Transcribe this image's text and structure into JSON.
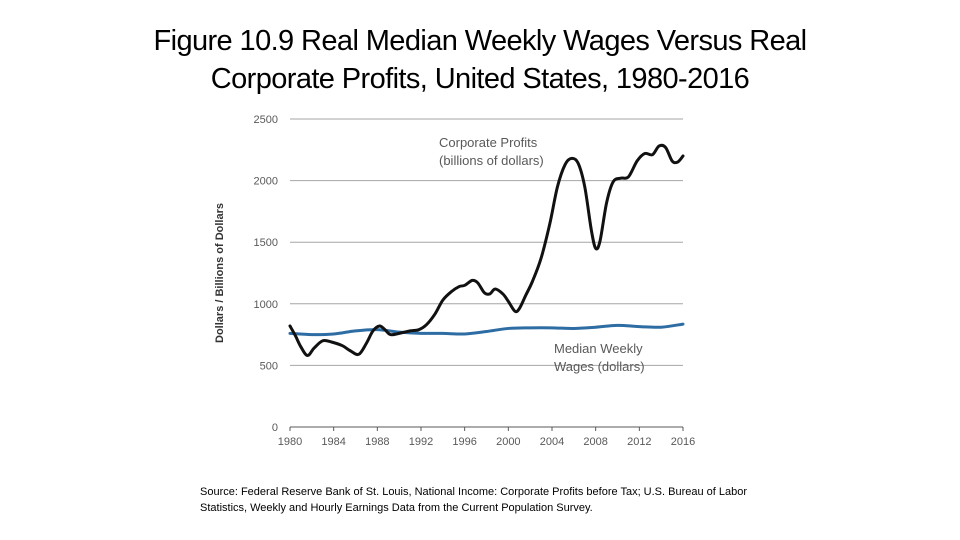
{
  "title_lines": [
    "Figure 10.9 Real Median Weekly Wages Versus Real",
    "Corporate Profits, United States, 1980-2016"
  ],
  "source_lines": [
    "Source: Federal Reserve Bank of St. Louis, National Income: Corporate Profits before Tax; U.S. Bureau of Labor",
    "Statistics, Weekly and Hourly Earnings Data from the Current Population Survey."
  ],
  "chart_data": {
    "type": "line",
    "ylabel": "Dollars / Billions of Dollars",
    "xlim": [
      1980,
      2016
    ],
    "ylim": [
      0,
      2500
    ],
    "x_ticks": [
      "1980",
      "1984",
      "1988",
      "1992",
      "1996",
      "2000",
      "2004",
      "2008",
      "2012",
      "2016"
    ],
    "y_ticks": [
      "0",
      "500",
      "1000",
      "1500",
      "2000",
      "2500"
    ],
    "grid": "horizontal",
    "legend": "none",
    "series": [
      {
        "color": "#111111",
        "points": [
          [
            1980,
            820
          ],
          [
            1980.5,
            740
          ],
          [
            1981,
            650
          ],
          [
            1981.6,
            580
          ],
          [
            1982.2,
            640
          ],
          [
            1983,
            700
          ],
          [
            1983.8,
            690
          ],
          [
            1984.8,
            660
          ],
          [
            1985.5,
            620
          ],
          [
            1986.3,
            590
          ],
          [
            1987,
            680
          ],
          [
            1987.6,
            780
          ],
          [
            1988.2,
            820
          ],
          [
            1988.7,
            790
          ],
          [
            1989.2,
            750
          ],
          [
            1990,
            760
          ],
          [
            1991,
            780
          ],
          [
            1991.8,
            790
          ],
          [
            1992.5,
            830
          ],
          [
            1993.3,
            920
          ],
          [
            1994,
            1030
          ],
          [
            1994.8,
            1100
          ],
          [
            1995.5,
            1140
          ],
          [
            1996,
            1150
          ],
          [
            1996.7,
            1190
          ],
          [
            1997.2,
            1170
          ],
          [
            1997.8,
            1090
          ],
          [
            1998.3,
            1080
          ],
          [
            1998.8,
            1120
          ],
          [
            1999.5,
            1080
          ],
          [
            2000,
            1020
          ],
          [
            2000.6,
            940
          ],
          [
            2001,
            960
          ],
          [
            2001.6,
            1070
          ],
          [
            2002.2,
            1180
          ],
          [
            2003,
            1370
          ],
          [
            2003.8,
            1650
          ],
          [
            2004.5,
            1950
          ],
          [
            2005.2,
            2130
          ],
          [
            2005.8,
            2180
          ],
          [
            2006.4,
            2140
          ],
          [
            2007,
            1950
          ],
          [
            2007.6,
            1600
          ],
          [
            2008,
            1450
          ],
          [
            2008.4,
            1510
          ],
          [
            2009,
            1820
          ],
          [
            2009.6,
            1990
          ],
          [
            2010.3,
            2020
          ],
          [
            2011,
            2030
          ],
          [
            2011.8,
            2160
          ],
          [
            2012.5,
            2220
          ],
          [
            2013.2,
            2210
          ],
          [
            2013.8,
            2280
          ],
          [
            2014.4,
            2270
          ],
          [
            2015,
            2160
          ],
          [
            2015.5,
            2150
          ],
          [
            2016,
            2200
          ]
        ]
      },
      {
        "color": "#2e6da4",
        "points": [
          [
            1980,
            760
          ],
          [
            1982,
            750
          ],
          [
            1984,
            755
          ],
          [
            1986,
            780
          ],
          [
            1988,
            790
          ],
          [
            1990,
            770
          ],
          [
            1992,
            760
          ],
          [
            1994,
            760
          ],
          [
            1996,
            755
          ],
          [
            1998,
            775
          ],
          [
            2000,
            800
          ],
          [
            2002,
            805
          ],
          [
            2004,
            805
          ],
          [
            2006,
            800
          ],
          [
            2008,
            810
          ],
          [
            2010,
            825
          ],
          [
            2012,
            815
          ],
          [
            2014,
            810
          ],
          [
            2016,
            835
          ]
        ]
      }
    ],
    "annotations": [
      {
        "lines": [
          "Corporate Profits",
          "(billions of dollars)"
        ],
        "series_index": 0
      },
      {
        "lines": [
          "Median Weekly",
          "Wages (dollars)"
        ],
        "series_index": 1
      }
    ]
  }
}
